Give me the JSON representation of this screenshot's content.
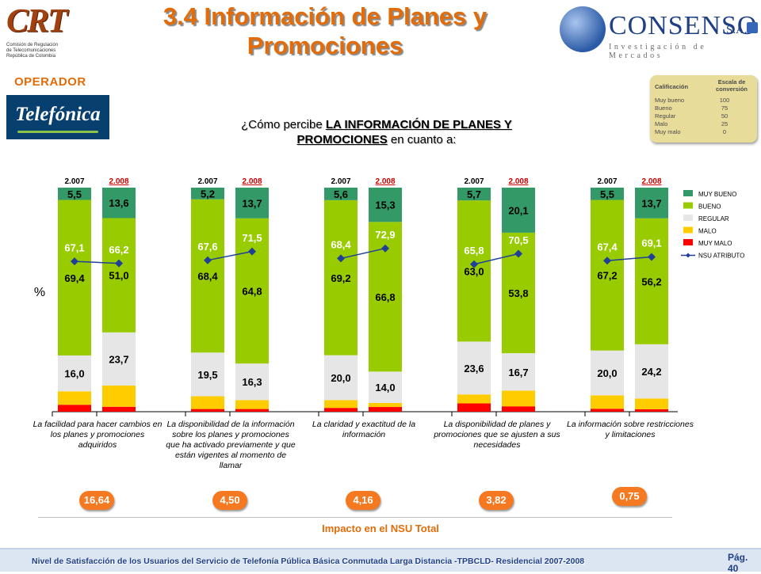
{
  "header": {
    "title_line1": "3.4 Información de Planes y",
    "title_line2": "Promociones",
    "crt_logo": {
      "mark": "CRT",
      "subtitle": "Comisión de Regulación\nde Telecomunicaciones\nRepública de Colombia"
    },
    "consenso_logo": {
      "name": "CONSENSO",
      "suffix": "S.A.",
      "tagline": "Investigación de Mercados"
    }
  },
  "operator": {
    "label": "OPERADOR",
    "logo_text": "Telefónica"
  },
  "question": {
    "prefix": "¿Cómo percibe ",
    "bold_part1": "LA INFORMACIÓN DE PLANES Y",
    "bold_part2": "PROMOCIONES",
    "suffix": " en cuanto a:"
  },
  "scale": {
    "head_left": "Calificación",
    "head_right": "Escala de conversión",
    "rows": [
      {
        "label": "Muy bueno",
        "value": "100"
      },
      {
        "label": "Bueno",
        "value": "75"
      },
      {
        "label": "Regular",
        "value": "50"
      },
      {
        "label": "Malo",
        "value": "25"
      },
      {
        "label": "Muy malo",
        "value": "0"
      }
    ]
  },
  "colors": {
    "muy_bueno": "#339966",
    "bueno": "#99cc00",
    "regular": "#e6e6e6",
    "malo": "#ffcc00",
    "muy_malo": "#ff0000",
    "nsu_line": "#1f3f99",
    "accent": "#e36c09",
    "bubble": "#f47920"
  },
  "chart_data": {
    "type": "bar",
    "stacked": true,
    "ylabel": "%",
    "ylim": [
      0,
      100
    ],
    "legend": {
      "position": "right",
      "entries": [
        "MUY BUENO",
        "BUENO",
        "REGULAR",
        "MALO",
        "MUY MALO",
        "NSU ATRIBUTO"
      ]
    },
    "year_labels": [
      "2.007",
      "2.008"
    ],
    "groups": [
      {
        "label": "La facilidad para hacer cambios en los planes y promociones adquiridos",
        "bars": [
          {
            "year": "2.007",
            "muy_bueno": 5.5,
            "bueno": 69.4,
            "regular": 16.0,
            "malo": 6.0,
            "muy_malo": 3.1,
            "nsu": 67.1,
            "labels": [
              "5,5",
              "69,4",
              "16,0"
            ],
            "nsu_label": "67,1"
          },
          {
            "year": "2.008",
            "muy_bueno": 13.6,
            "bueno": 51.0,
            "regular": 23.7,
            "malo": 9.5,
            "muy_malo": 2.2,
            "nsu": 66.2,
            "labels": [
              "13,6",
              "51,0",
              "23,7"
            ],
            "nsu_label": "66,2"
          }
        ],
        "impact": "16,64"
      },
      {
        "label": "La disponibilidad de la información sobre los planes y promociones que ha activado previamente y que están vigentes al momento de llamar",
        "bars": [
          {
            "year": "2.007",
            "muy_bueno": 5.2,
            "bueno": 68.4,
            "regular": 19.5,
            "malo": 5.7,
            "muy_malo": 1.2,
            "nsu": 67.6,
            "labels": [
              "5,2",
              "68,4",
              "19,5"
            ],
            "nsu_label": "67,6"
          },
          {
            "year": "2.008",
            "muy_bueno": 13.7,
            "bueno": 64.8,
            "regular": 16.3,
            "malo": 4.0,
            "muy_malo": 1.2,
            "nsu": 71.5,
            "labels": [
              "13,7",
              "64,8",
              "16,3"
            ],
            "nsu_label": "71,5"
          }
        ],
        "impact": "4,50"
      },
      {
        "label": "La claridad y exactitud de la información",
        "bars": [
          {
            "year": "2.007",
            "muy_bueno": 5.6,
            "bueno": 69.2,
            "regular": 20.0,
            "malo": 3.5,
            "muy_malo": 1.7,
            "nsu": 68.4,
            "labels": [
              "5,6",
              "69,2",
              "20,0"
            ],
            "nsu_label": "68,4"
          },
          {
            "year": "2.008",
            "muy_bueno": 15.3,
            "bueno": 66.8,
            "regular": 14.0,
            "malo": 1.8,
            "muy_malo": 2.1,
            "nsu": 72.9,
            "labels": [
              "15,3",
              "66,8",
              "14,0"
            ],
            "nsu_label": "72,9"
          }
        ],
        "impact": "4,16"
      },
      {
        "label": "La disponibilidad de planes y promociones que se ajusten a sus necesidades",
        "bars": [
          {
            "year": "2.007",
            "muy_bueno": 5.7,
            "bueno": 63.0,
            "regular": 23.6,
            "malo": 4.0,
            "muy_malo": 3.7,
            "nsu": 65.8,
            "labels": [
              "5,7",
              "63,0",
              "23,6"
            ],
            "nsu_label": "65,8"
          },
          {
            "year": "2.008",
            "muy_bueno": 20.1,
            "bueno": 53.8,
            "regular": 16.7,
            "malo": 7.0,
            "muy_malo": 2.4,
            "nsu": 70.5,
            "labels": [
              "20,1",
              "53,8",
              "16,7"
            ],
            "nsu_label": "70,5"
          }
        ],
        "impact": "3,82"
      },
      {
        "label": "La información sobre restricciones y limitaciones",
        "bars": [
          {
            "year": "2.007",
            "muy_bueno": 5.5,
            "bueno": 67.2,
            "regular": 20.0,
            "malo": 6.0,
            "muy_malo": 1.3,
            "nsu": 67.4,
            "labels": [
              "5,5",
              "67,2",
              "20,0"
            ],
            "nsu_label": "67,4"
          },
          {
            "year": "2.008",
            "muy_bueno": 13.7,
            "bueno": 56.2,
            "regular": 24.2,
            "malo": 4.8,
            "muy_malo": 1.1,
            "nsu": 69.1,
            "labels": [
              "13,7",
              "56,2",
              "24,2"
            ],
            "nsu_label": "69,1"
          }
        ],
        "impact": "0,75"
      }
    ]
  },
  "impact_label": "Impacto en el NSU Total",
  "footer": {
    "text": "Nivel de Satisfacción de los Usuarios del Servicio de Telefonía Pública Básica Conmutada Larga Distancia -TPBCLD- Residencial 2007-2008",
    "page": "Pág. 40"
  }
}
